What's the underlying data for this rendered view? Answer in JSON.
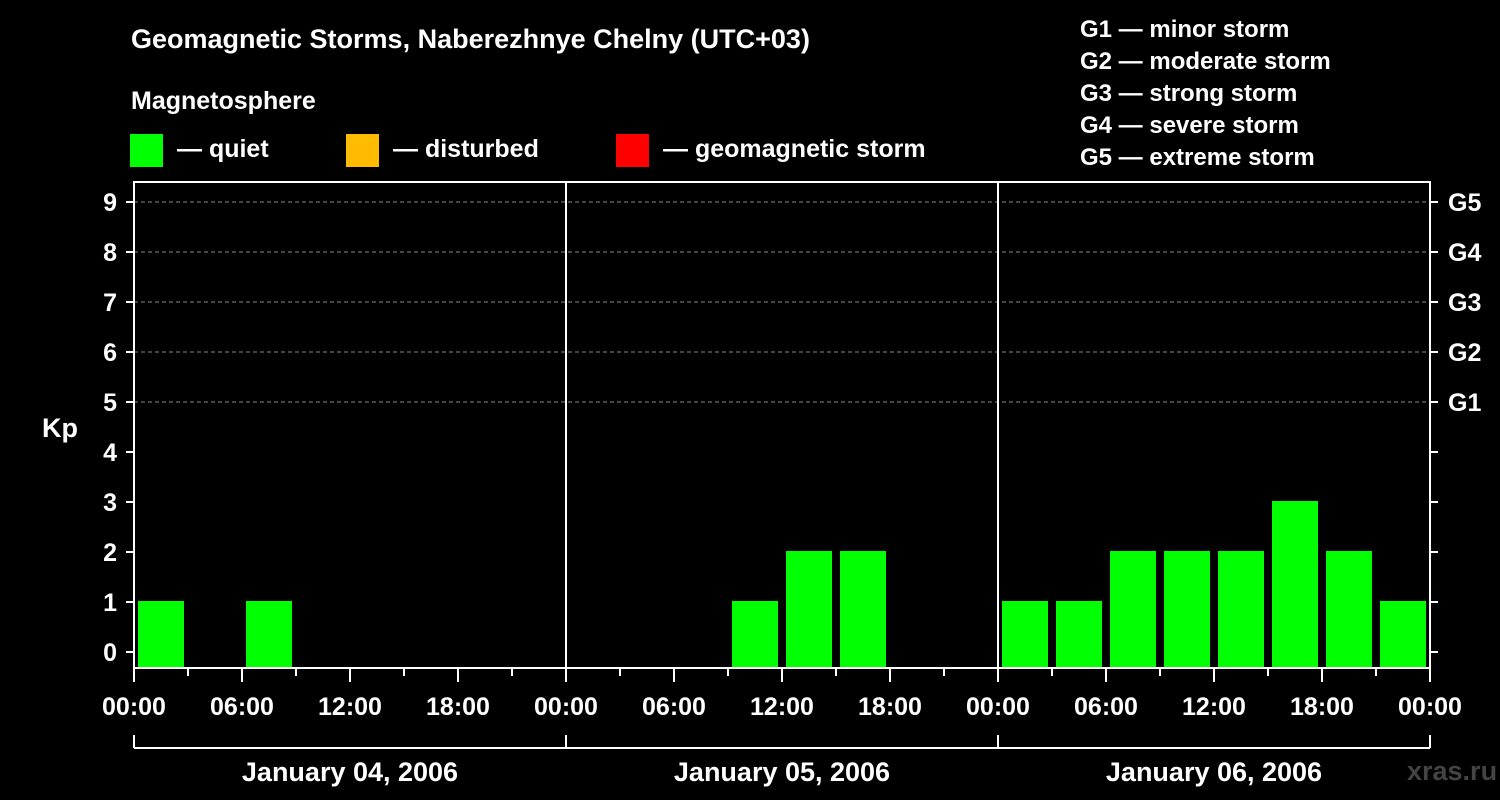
{
  "title": "Geomagnetic Storms, Naberezhnye Chelny (UTC+03)",
  "legend": {
    "heading": "Magnetosphere",
    "items": [
      {
        "label": "— quiet",
        "color": "#00ff00"
      },
      {
        "label": "— disturbed",
        "color": "#ffbb00"
      },
      {
        "label": "— geomagnetic storm",
        "color": "#ff0000"
      }
    ]
  },
  "storm_scale": [
    "G1 — minor storm",
    "G2 — moderate storm",
    "G3 — strong storm",
    "G4 — severe storm",
    "G5 — extreme storm"
  ],
  "watermark": "xras.ru",
  "chart_data": {
    "type": "bar",
    "ylabel": "Kp",
    "ylim": [
      0,
      9
    ],
    "yticks": [
      0,
      1,
      2,
      3,
      4,
      5,
      6,
      7,
      8,
      9
    ],
    "right_ticks": [
      {
        "kp": 5,
        "label": "G1"
      },
      {
        "kp": 6,
        "label": "G2"
      },
      {
        "kp": 7,
        "label": "G3"
      },
      {
        "kp": 8,
        "label": "G4"
      },
      {
        "kp": 9,
        "label": "G5"
      }
    ],
    "grid": "horizontal dashed at Kp 5-9",
    "days": [
      "January 04, 2006",
      "January 05, 2006",
      "January 06, 2006"
    ],
    "time_ticks": [
      "00:00",
      "06:00",
      "12:00",
      "18:00",
      "00:00",
      "06:00",
      "12:00",
      "18:00",
      "00:00",
      "06:00",
      "12:00",
      "18:00",
      "00:00"
    ],
    "interval_hours": 3,
    "kp_values": [
      [
        1,
        null,
        1,
        null,
        null,
        null,
        null,
        null
      ],
      [
        null,
        null,
        null,
        1,
        2,
        2,
        null,
        null
      ],
      [
        1,
        1,
        2,
        2,
        2,
        3,
        2,
        1
      ]
    ],
    "bar_color": "#00ff00"
  }
}
